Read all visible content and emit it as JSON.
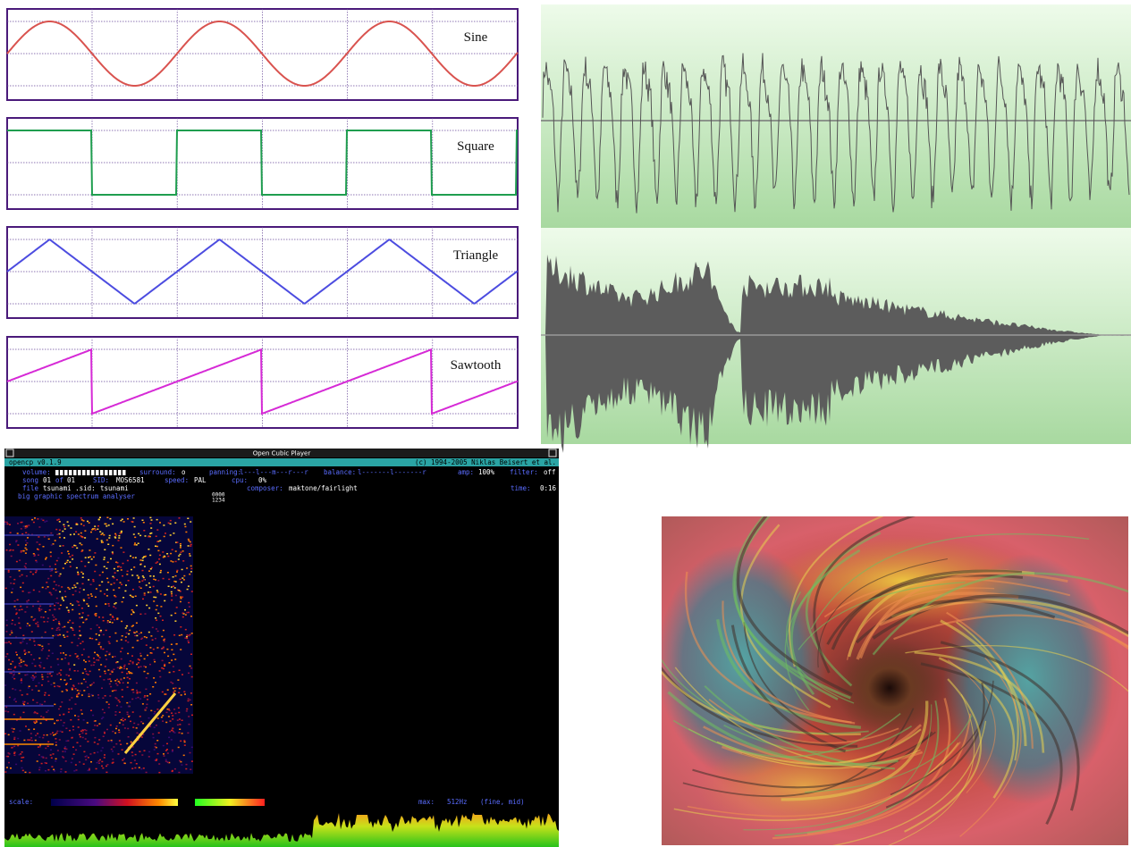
{
  "waveforms": {
    "labels": [
      "Sine",
      "Square",
      "Triangle",
      "Sawtooth"
    ]
  },
  "player": {
    "window_title": "Open Cubic Player",
    "version": "opencp v0.1.9",
    "copyright": "(c) 1994-2005 Niklas Beisert et al.",
    "row1": [
      "volume:",
      "surround:",
      "o",
      "panning:",
      "l---l---m---r---r",
      "balance:",
      "l-------l-------r",
      "amp:",
      "100%",
      "filter:",
      "off"
    ],
    "row2": [
      "song",
      "01",
      "of",
      "01",
      "SID:",
      "MOS6581",
      "speed:",
      "PAL",
      "cpu:",
      "0%"
    ],
    "row3": [
      "file",
      "tsunami .sid:",
      "tsunami",
      "composer:",
      "maktone/fairlight",
      "time:",
      "0:16"
    ],
    "mode": "big graphic spectrum analyser",
    "channels": [
      "0000",
      "1234"
    ],
    "scale": "scale:",
    "max": [
      "max:",
      "512Hz",
      "(fine, mid)"
    ]
  }
}
